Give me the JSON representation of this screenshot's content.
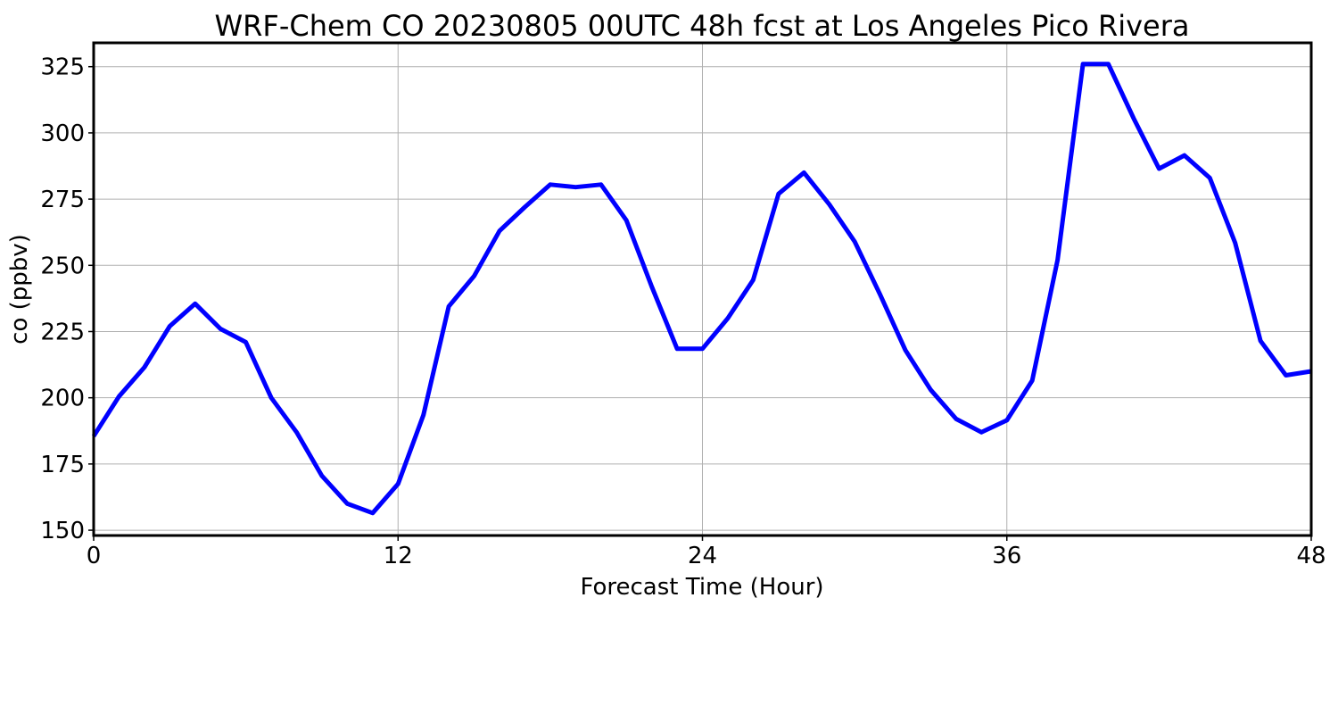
{
  "chart_data": {
    "type": "line",
    "title": "WRF-Chem CO  20230805 00UTC 48h fcst at Los Angeles Pico Rivera",
    "xlabel": "Forecast Time (Hour)",
    "ylabel": "co  (ppbv)",
    "xlim": [
      0,
      48
    ],
    "ylim": [
      148,
      334
    ],
    "xticks": [
      0,
      12,
      24,
      36,
      48
    ],
    "yticks": [
      150,
      175,
      200,
      225,
      250,
      275,
      300,
      325
    ],
    "grid": true,
    "series": [
      {
        "color": "#0000ff",
        "x": [
          0,
          1,
          2,
          3,
          4,
          5,
          6,
          7,
          8,
          9,
          10,
          11,
          12,
          13,
          14,
          15,
          16,
          17,
          18,
          19,
          20,
          21,
          22,
          23,
          24,
          25,
          26,
          27,
          28,
          29,
          30,
          31,
          32,
          33,
          34,
          35,
          36,
          37,
          38,
          39,
          40,
          41,
          42,
          43,
          44,
          45,
          46,
          47,
          48
        ],
        "values": [
          185.5,
          200.5,
          211.5,
          227,
          235.5,
          226,
          221,
          200,
          187,
          170.5,
          160,
          156.5,
          167.5,
          193.5,
          234.5,
          246,
          263,
          272,
          280.5,
          279.5,
          280.5,
          267,
          242,
          218.5,
          218.5,
          230,
          244.5,
          277,
          285,
          273,
          259,
          239,
          218,
          203,
          192,
          187,
          191.5,
          206.5,
          252,
          326,
          326,
          305.5,
          286.5,
          291.5,
          283,
          258.5,
          221.5,
          208.5,
          210
        ]
      }
    ]
  }
}
